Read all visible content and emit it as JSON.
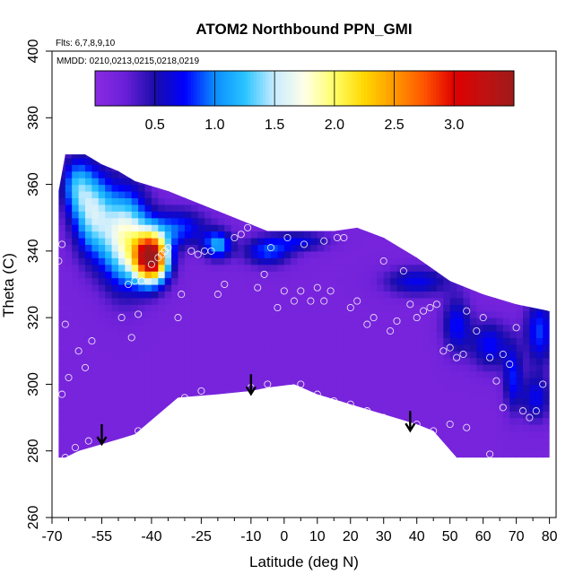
{
  "chart_data": {
    "type": "heatmap",
    "title": "ATOM2 Northbound PPN_GMI",
    "annotations": {
      "flights": "Flts: 6,7,8,9,10",
      "dates": "MMDD: 0210,0213,0215,0218,0219"
    },
    "xlabel": "Latitude (deg N)",
    "ylabel": "Theta (C)",
    "xlim": [
      -70,
      82
    ],
    "ylim": [
      260,
      400
    ],
    "x_ticks": [
      -70,
      -55,
      -40,
      -25,
      -10,
      0,
      10,
      20,
      30,
      40,
      50,
      60,
      70,
      80
    ],
    "x_tick_labels": [
      "-70",
      "-55",
      "-40",
      "-25",
      "-10",
      "0",
      "10",
      "20",
      "30",
      "40",
      "50",
      "60",
      "70",
      "80"
    ],
    "x_minor_ticks": [
      -65,
      -60,
      -50,
      -45,
      -35,
      -30,
      -20,
      -15,
      -5,
      5,
      15,
      25,
      35,
      45,
      55,
      65,
      75
    ],
    "y_ticks": [
      260,
      280,
      300,
      320,
      340,
      360,
      380,
      400
    ],
    "y_tick_labels": [
      "260",
      "280",
      "300",
      "320",
      "340",
      "360",
      "380",
      "400"
    ],
    "colorbar": {
      "range": [
        0,
        3.5
      ],
      "ticks": [
        0.5,
        1.0,
        1.5,
        2.0,
        2.5,
        3.0
      ],
      "tick_labels": [
        "0.5",
        "1.0",
        "1.5",
        "2.0",
        "2.5",
        "3.0"
      ],
      "stops": [
        {
          "v": 0.0,
          "c": "#8a2be2"
        },
        {
          "v": 0.25,
          "c": "#6a20d8"
        },
        {
          "v": 0.5,
          "c": "#1a0dab"
        },
        {
          "v": 0.75,
          "c": "#0000ff"
        },
        {
          "v": 1.0,
          "c": "#0a8cff"
        },
        {
          "v": 1.25,
          "c": "#28c4ff"
        },
        {
          "v": 1.5,
          "c": "#c8ecff"
        },
        {
          "v": 1.75,
          "c": "#ffffe8"
        },
        {
          "v": 2.0,
          "c": "#ffff66"
        },
        {
          "v": 2.25,
          "c": "#ffd700"
        },
        {
          "v": 2.5,
          "c": "#ff9900"
        },
        {
          "v": 2.75,
          "c": "#ff5500"
        },
        {
          "v": 3.0,
          "c": "#e00000"
        },
        {
          "v": 3.25,
          "c": "#c01010"
        },
        {
          "v": 3.5,
          "c": "#9e1a1a"
        }
      ]
    },
    "region_boundary": {
      "top": [
        [
          -68,
          358
        ],
        [
          -66,
          369
        ],
        [
          -60,
          369
        ],
        [
          -55,
          366
        ],
        [
          -50,
          364
        ],
        [
          -45,
          361
        ],
        [
          -35,
          358
        ],
        [
          -25,
          354
        ],
        [
          -15,
          350
        ],
        [
          -5,
          346
        ],
        [
          5,
          346
        ],
        [
          15,
          346
        ],
        [
          22,
          347
        ],
        [
          30,
          344
        ],
        [
          40,
          338
        ],
        [
          50,
          331
        ],
        [
          60,
          327
        ],
        [
          70,
          324
        ],
        [
          80,
          322
        ]
      ],
      "bottom": [
        [
          80,
          278
        ],
        [
          70,
          278
        ],
        [
          60,
          278
        ],
        [
          52,
          278
        ],
        [
          45,
          286
        ],
        [
          40,
          288
        ],
        [
          30,
          291
        ],
        [
          20,
          294
        ],
        [
          10,
          297
        ],
        [
          3,
          300
        ],
        [
          -5,
          299
        ],
        [
          -10,
          298
        ],
        [
          -20,
          297
        ],
        [
          -32,
          296
        ],
        [
          -45,
          285
        ],
        [
          -55,
          282
        ],
        [
          -62,
          280
        ],
        [
          -66,
          278
        ],
        [
          -68,
          278
        ]
      ]
    },
    "background_value": 0.15,
    "features": [
      {
        "lat": -40,
        "theta": 338,
        "value": 3.3,
        "sx": 3.5,
        "sy": 5
      },
      {
        "lat": -48,
        "theta": 344,
        "value": 1.6,
        "sx": 5,
        "sy": 10
      },
      {
        "lat": -58,
        "theta": 352,
        "value": 1.2,
        "sx": 4,
        "sy": 9
      },
      {
        "lat": -63,
        "theta": 360,
        "value": 0.75,
        "sx": 3,
        "sy": 6
      },
      {
        "lat": -20,
        "theta": 342,
        "value": 0.95,
        "sx": 3,
        "sy": 3
      },
      {
        "lat": -5,
        "theta": 340,
        "value": 0.7,
        "sx": 5,
        "sy": 3
      },
      {
        "lat": -32,
        "theta": 347,
        "value": 0.7,
        "sx": 6,
        "sy": 4
      },
      {
        "lat": 5,
        "theta": 343,
        "value": 0.5,
        "sx": 6,
        "sy": 2
      },
      {
        "lat": 40,
        "theta": 331,
        "value": 0.55,
        "sx": 7,
        "sy": 3
      },
      {
        "lat": 52,
        "theta": 318,
        "value": 0.6,
        "sx": 3,
        "sy": 6
      },
      {
        "lat": 62,
        "theta": 312,
        "value": 0.6,
        "sx": 4,
        "sy": 5
      },
      {
        "lat": 69,
        "theta": 302,
        "value": 0.6,
        "sx": 2,
        "sy": 7
      },
      {
        "lat": 77,
        "theta": 316,
        "value": 0.7,
        "sx": 3,
        "sy": 7
      },
      {
        "lat": 76,
        "theta": 296,
        "value": 0.55,
        "sx": 3,
        "sy": 5
      }
    ],
    "observations": [
      [
        -67,
        342
      ],
      [
        -68,
        337
      ],
      [
        -66,
        318
      ],
      [
        -65,
        302
      ],
      [
        -67,
        297
      ],
      [
        -62,
        310
      ],
      [
        -60,
        305
      ],
      [
        -58,
        313
      ],
      [
        -63,
        281
      ],
      [
        -59,
        283
      ],
      [
        -66,
        278
      ],
      [
        -49,
        320
      ],
      [
        -46,
        314
      ],
      [
        -44,
        321
      ],
      [
        -47,
        330
      ],
      [
        -45,
        331
      ],
      [
        -43,
        331
      ],
      [
        -40,
        336
      ],
      [
        -38,
        338
      ],
      [
        -37,
        339
      ],
      [
        -36,
        340
      ],
      [
        -35,
        341
      ],
      [
        -31,
        327
      ],
      [
        -32,
        320
      ],
      [
        -44,
        286
      ],
      [
        -30,
        296
      ],
      [
        -28,
        340
      ],
      [
        -26,
        339
      ],
      [
        -24,
        340
      ],
      [
        -22,
        340
      ],
      [
        -20,
        327
      ],
      [
        -18,
        330
      ],
      [
        -15,
        344
      ],
      [
        -13,
        345
      ],
      [
        -11,
        347
      ],
      [
        -8,
        329
      ],
      [
        -6,
        333
      ],
      [
        -4,
        341
      ],
      [
        -2,
        323
      ],
      [
        0,
        328
      ],
      [
        1,
        344
      ],
      [
        3,
        325
      ],
      [
        5,
        328
      ],
      [
        6,
        342
      ],
      [
        8,
        325
      ],
      [
        10,
        329
      ],
      [
        12,
        343
      ],
      [
        12,
        325
      ],
      [
        14,
        328
      ],
      [
        16,
        344
      ],
      [
        18,
        344
      ],
      [
        20,
        323
      ],
      [
        22,
        325
      ],
      [
        25,
        318
      ],
      [
        27,
        320
      ],
      [
        28,
        346
      ],
      [
        30,
        337
      ],
      [
        32,
        316
      ],
      [
        34,
        319
      ],
      [
        36,
        334
      ],
      [
        38,
        324
      ],
      [
        40,
        320
      ],
      [
        42,
        322
      ],
      [
        44,
        323
      ],
      [
        46,
        324
      ],
      [
        48,
        310
      ],
      [
        50,
        311
      ],
      [
        52,
        308
      ],
      [
        54,
        309
      ],
      [
        55,
        322
      ],
      [
        58,
        316
      ],
      [
        60,
        320
      ],
      [
        62,
        308
      ],
      [
        64,
        301
      ],
      [
        66,
        309
      ],
      [
        68,
        306
      ],
      [
        70,
        317
      ],
      [
        72,
        292
      ],
      [
        74,
        290
      ],
      [
        76,
        292
      ],
      [
        78,
        300
      ],
      [
        80,
        323
      ],
      [
        -25,
        298
      ],
      [
        -10,
        299
      ],
      [
        -5,
        300
      ],
      [
        5,
        300
      ],
      [
        10,
        297
      ],
      [
        15,
        295
      ],
      [
        20,
        294
      ],
      [
        25,
        292
      ],
      [
        30,
        290
      ],
      [
        40,
        288
      ],
      [
        45,
        286
      ],
      [
        50,
        288
      ],
      [
        55,
        287
      ],
      [
        62,
        279
      ],
      [
        66,
        293
      ]
    ],
    "flight_markers": [
      {
        "lat": -55,
        "theta": 288
      },
      {
        "lat": -10,
        "theta": 303
      },
      {
        "lat": 38,
        "theta": 292
      }
    ]
  }
}
